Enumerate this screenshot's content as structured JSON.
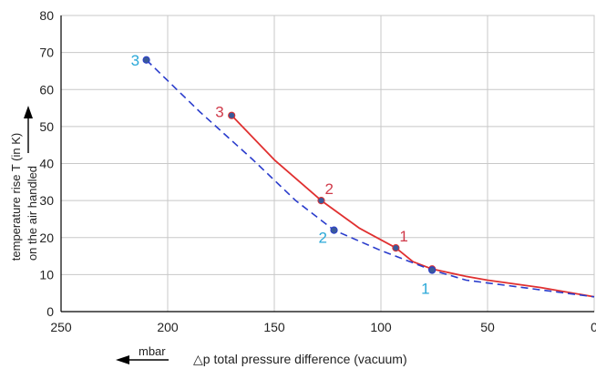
{
  "chart_data": {
    "type": "line",
    "title": "",
    "xlabel": "△p total pressure difference (vacuum)",
    "xunit": "mbar",
    "ylabel_line1": "temperature rise T (in K)",
    "ylabel_line2": "on the air handled",
    "xlim": [
      250,
      0
    ],
    "ylim": [
      0,
      80
    ],
    "x_ticks": [
      250,
      200,
      150,
      100,
      50,
      0
    ],
    "y_ticks": [
      0,
      10,
      20,
      30,
      40,
      50,
      60,
      70,
      80
    ],
    "grid": true,
    "series": [
      {
        "style": "solid",
        "color": "#e03030",
        "x": [
          170,
          150,
          128,
          110,
          93,
          85,
          76,
          60,
          50,
          25,
          0
        ],
        "y": [
          53,
          41,
          30,
          22.5,
          17.2,
          13.5,
          11.5,
          9.5,
          8.5,
          6.5,
          4
        ],
        "markers": [
          {
            "x": 170,
            "y": 53,
            "label": "3"
          },
          {
            "x": 128,
            "y": 30,
            "label": "2"
          },
          {
            "x": 93,
            "y": 17.2,
            "label": "1"
          },
          {
            "x": 76,
            "y": 11.5,
            "label": ""
          }
        ]
      },
      {
        "style": "dashed",
        "color": "#2a3ccc",
        "x": [
          210,
          185,
          160,
          140,
          122,
          100,
          76,
          60,
          40,
          20,
          0
        ],
        "y": [
          68,
          54,
          41,
          30,
          22,
          16.5,
          11.2,
          8.5,
          7,
          5.5,
          4
        ],
        "markers": [
          {
            "x": 210,
            "y": 68,
            "label": "3"
          },
          {
            "x": 122,
            "y": 22,
            "label": "2"
          },
          {
            "x": 76,
            "y": 11.2,
            "label": "1"
          }
        ]
      }
    ],
    "colors": {
      "solid_label": "#d03a4a",
      "dashed_label": "#2aa8d8",
      "marker": "#3a5a9a",
      "grid": "#c8c8c8",
      "axis": "#000000"
    }
  }
}
